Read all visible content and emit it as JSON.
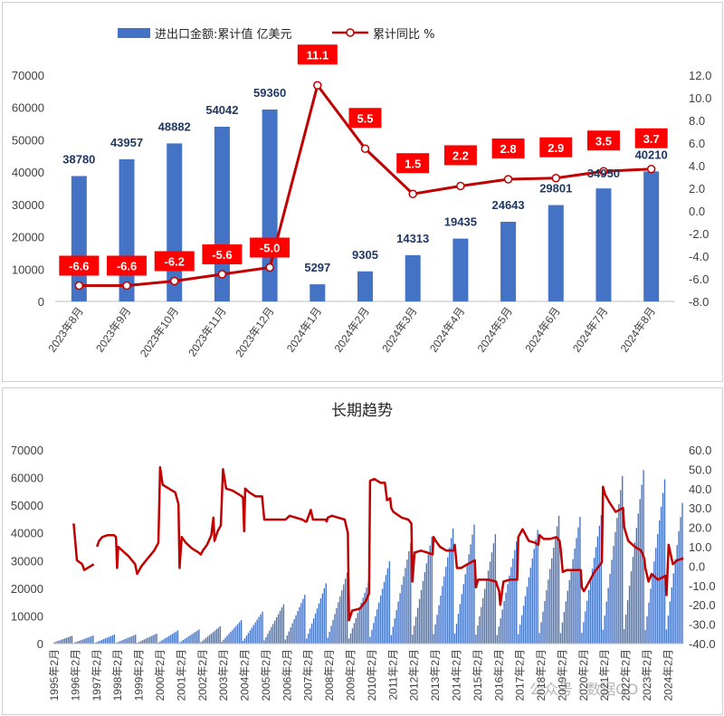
{
  "colors": {
    "bar": "#4472c4",
    "line": "#c00000",
    "rate_box": "#ff0000"
  },
  "chart_data": [
    {
      "type": "bar+line",
      "legend": {
        "bar": "进出口金额:累计值 亿美元",
        "line": "累计同比 %",
        "placement": "top"
      },
      "categories": [
        "2023年8月",
        "2023年9月",
        "2023年10月",
        "2023年11月",
        "2023年12月",
        "2024年1月",
        "2024年2月",
        "2024年3月",
        "2024年4月",
        "2024年5月",
        "2024年6月",
        "2024年7月",
        "2024年8月"
      ],
      "bar_values": [
        38780,
        43957,
        48882,
        54042,
        59360,
        5297,
        9305,
        14313,
        19435,
        24643,
        29801,
        34950,
        40210
      ],
      "line_values": [
        -6.6,
        -6.6,
        -6.2,
        -5.6,
        -5.0,
        11.1,
        5.5,
        1.5,
        2.2,
        2.8,
        2.9,
        3.5,
        3.7
      ],
      "ylim_left": [
        0,
        70000
      ],
      "yticks_left": [
        "0",
        "10000",
        "20000",
        "30000",
        "40000",
        "50000",
        "60000",
        "70000"
      ],
      "ylim_right": [
        -8.0,
        12.0
      ],
      "yticks_right": [
        "-8.0",
        "-6.0",
        "-4.0",
        "-2.0",
        "0.0",
        "2.0",
        "4.0",
        "6.0",
        "8.0",
        "10.0",
        "12.0"
      ],
      "grid": false
    },
    {
      "type": "bar+line",
      "title": "长期趋势",
      "x_tick_labels": [
        "1995年2月",
        "1996年2月",
        "1997年2月",
        "1998年2月",
        "1999年2月",
        "2000年2月",
        "2001年2月",
        "2002年2月",
        "2003年2月",
        "2004年2月",
        "2005年2月",
        "2006年2月",
        "2007年2月",
        "2008年2月",
        "2009年2月",
        "2010年2月",
        "2011年2月",
        "2012年2月",
        "2013年2月",
        "2014年2月",
        "2015年2月",
        "2016年2月",
        "2017年2月",
        "2018年2月",
        "2019年2月",
        "2020年2月",
        "2021年2月",
        "2022年2月",
        "2023年2月",
        "2024年2月"
      ],
      "annual_totals": [
        2809,
        2899,
        3252,
        3240,
        3606,
        4743,
        5097,
        6208,
        8510,
        11546,
        14219,
        17604,
        21762,
        25633,
        22075,
        29740,
        36419,
        38671,
        41590,
        43015,
        39530,
        36856,
        41071,
        46224,
        45779,
        46463,
        60515,
        62670,
        59360,
        61000
      ],
      "yoy_series": [
        [
          1996.0,
          22
        ],
        [
          1996.15,
          3
        ],
        [
          1996.4,
          1
        ],
        [
          1996.5,
          -2
        ],
        [
          1996.8,
          0
        ],
        [
          1996.95,
          1
        ],
        [
          1997.1,
          10
        ],
        [
          1997.2,
          13
        ],
        [
          1997.35,
          15
        ],
        [
          1997.6,
          16
        ],
        [
          1997.9,
          16
        ],
        [
          1998.0,
          15
        ],
        [
          1998.05,
          -1
        ],
        [
          1998.1,
          10
        ],
        [
          1998.3,
          8
        ],
        [
          1998.6,
          5
        ],
        [
          1998.9,
          1
        ],
        [
          1999.0,
          -4
        ],
        [
          1999.2,
          0
        ],
        [
          1999.5,
          4
        ],
        [
          1999.8,
          8
        ],
        [
          1999.95,
          11
        ],
        [
          2000.0,
          12
        ],
        [
          2000.08,
          51
        ],
        [
          2000.2,
          42
        ],
        [
          2000.5,
          40
        ],
        [
          2000.8,
          38
        ],
        [
          2000.95,
          32
        ],
        [
          2001.0,
          -1
        ],
        [
          2001.1,
          15
        ],
        [
          2001.3,
          12
        ],
        [
          2001.6,
          9
        ],
        [
          2001.9,
          7
        ],
        [
          2002.0,
          6
        ],
        [
          2002.1,
          8
        ],
        [
          2002.3,
          11
        ],
        [
          2002.5,
          16
        ],
        [
          2002.6,
          25
        ],
        [
          2002.65,
          13
        ],
        [
          2002.8,
          18
        ],
        [
          2002.95,
          21
        ],
        [
          2003.05,
          50
        ],
        [
          2003.2,
          40
        ],
        [
          2003.5,
          39
        ],
        [
          2003.8,
          37
        ],
        [
          2003.95,
          36
        ],
        [
          2004.0,
          35
        ],
        [
          2004.05,
          18
        ],
        [
          2004.1,
          40
        ],
        [
          2004.3,
          38
        ],
        [
          2004.6,
          36
        ],
        [
          2004.9,
          36
        ],
        [
          2005.0,
          24
        ],
        [
          2005.2,
          24
        ],
        [
          2005.5,
          24
        ],
        [
          2005.8,
          24
        ],
        [
          2005.95,
          24
        ],
        [
          2006.0,
          24
        ],
        [
          2006.2,
          26
        ],
        [
          2006.5,
          25
        ],
        [
          2006.8,
          24
        ],
        [
          2006.95,
          23
        ],
        [
          2007.0,
          23
        ],
        [
          2007.2,
          29
        ],
        [
          2007.3,
          24
        ],
        [
          2007.6,
          24
        ],
        [
          2007.9,
          24
        ],
        [
          2007.95,
          23
        ],
        [
          2008.0,
          25
        ],
        [
          2008.2,
          26
        ],
        [
          2008.5,
          25
        ],
        [
          2008.8,
          24
        ],
        [
          2008.95,
          17
        ],
        [
          2009.0,
          -28
        ],
        [
          2009.15,
          -23
        ],
        [
          2009.5,
          -22
        ],
        [
          2009.8,
          -18
        ],
        [
          2009.95,
          -14
        ],
        [
          2010.0,
          44
        ],
        [
          2010.2,
          45
        ],
        [
          2010.5,
          43
        ],
        [
          2010.7,
          43
        ],
        [
          2010.8,
          34
        ],
        [
          2010.95,
          35
        ],
        [
          2011.0,
          30
        ],
        [
          2011.1,
          28
        ],
        [
          2011.5,
          25
        ],
        [
          2011.8,
          24
        ],
        [
          2011.95,
          22
        ],
        [
          2012.0,
          -8
        ],
        [
          2012.1,
          7
        ],
        [
          2012.4,
          8
        ],
        [
          2012.7,
          7
        ],
        [
          2012.95,
          6
        ],
        [
          2013.0,
          15
        ],
        [
          2013.1,
          13
        ],
        [
          2013.3,
          10
        ],
        [
          2013.6,
          8
        ],
        [
          2013.95,
          8
        ],
        [
          2014.0,
          11
        ],
        [
          2014.1,
          -1
        ],
        [
          2014.3,
          -1
        ],
        [
          2014.6,
          1
        ],
        [
          2014.95,
          3
        ],
        [
          2015.0,
          -11
        ],
        [
          2015.1,
          -7
        ],
        [
          2015.3,
          -7
        ],
        [
          2015.6,
          -7
        ],
        [
          2015.95,
          -8
        ],
        [
          2016.0,
          -10
        ],
        [
          2016.1,
          -13
        ],
        [
          2016.15,
          -20
        ],
        [
          2016.3,
          -8
        ],
        [
          2016.6,
          -7
        ],
        [
          2016.95,
          -7
        ],
        [
          2017.0,
          15
        ],
        [
          2017.2,
          19
        ],
        [
          2017.5,
          13
        ],
        [
          2017.8,
          12
        ],
        [
          2017.95,
          11
        ],
        [
          2018.0,
          16
        ],
        [
          2018.2,
          14
        ],
        [
          2018.5,
          14
        ],
        [
          2018.8,
          15
        ],
        [
          2018.95,
          13
        ],
        [
          2019.0,
          9
        ],
        [
          2019.1,
          -3
        ],
        [
          2019.3,
          -2
        ],
        [
          2019.6,
          -2
        ],
        [
          2019.95,
          -2
        ],
        [
          2020.0,
          -11
        ],
        [
          2020.1,
          -13
        ],
        [
          2020.3,
          -9
        ],
        [
          2020.6,
          -3
        ],
        [
          2020.95,
          2
        ],
        [
          2021.0,
          41
        ],
        [
          2021.1,
          37
        ],
        [
          2021.3,
          33
        ],
        [
          2021.6,
          28
        ],
        [
          2021.95,
          30
        ],
        [
          2022.0,
          20
        ],
        [
          2022.2,
          13
        ],
        [
          2022.5,
          10
        ],
        [
          2022.8,
          8
        ],
        [
          2022.95,
          4
        ],
        [
          2023.0,
          -1
        ],
        [
          2023.15,
          -8
        ],
        [
          2023.3,
          -4
        ],
        [
          2023.6,
          -7
        ],
        [
          2023.95,
          -5
        ],
        [
          2024.0,
          -15
        ],
        [
          2024.1,
          11
        ],
        [
          2024.3,
          1
        ],
        [
          2024.5,
          3
        ],
        [
          2024.8,
          4
        ]
      ],
      "ylim_left": [
        0,
        70000
      ],
      "yticks_left": [
        "0",
        "10000",
        "20000",
        "30000",
        "40000",
        "50000",
        "60000",
        "70000"
      ],
      "ylim_right": [
        -40.0,
        60.0
      ],
      "yticks_right": [
        "-40.0",
        "-30.0",
        "-20.0",
        "-10.0",
        "0.0",
        "10.0",
        "20.0",
        "30.0",
        "40.0",
        "50.0",
        "60.0"
      ],
      "grid": false
    }
  ],
  "watermark": "公众号 · 数据GO"
}
